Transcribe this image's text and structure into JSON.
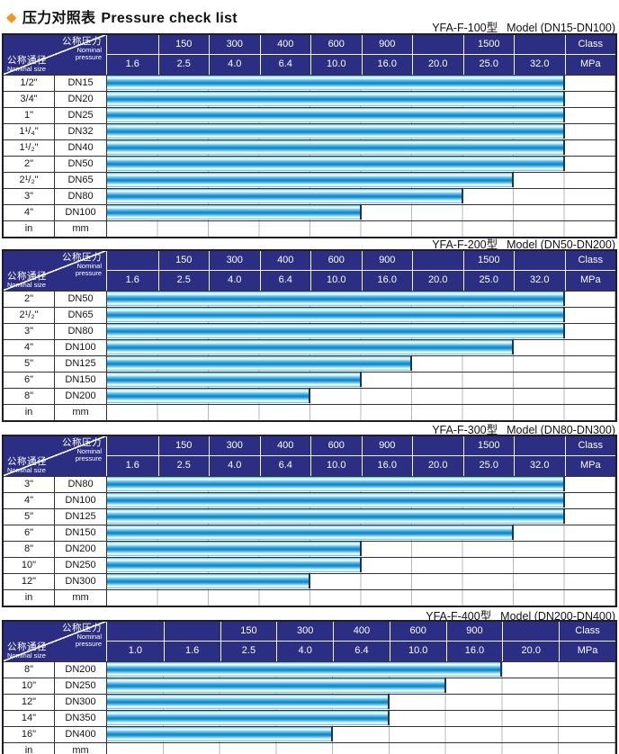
{
  "title": {
    "diamond": "◆",
    "zh": "压力对照表",
    "en": "Pressure check list"
  },
  "corner": {
    "pressure_zh": "公称压力",
    "pressure_en_line1": "Nominal",
    "pressure_en_line2": "pressure",
    "size_zh": "公称通径",
    "size_en": "Nominal size"
  },
  "colors": {
    "diamond_orange": "#f7941d",
    "header_navy": "#2b2e83",
    "header_divider_white": "#f4f4fb",
    "bar_deep_blue": "#0f86c4",
    "bar_mid_blue": "#49b1e3",
    "bar_highlight": "#ffffff",
    "grid_dark": "#323236",
    "grid_light": "#b7b7b7",
    "text_black": "#121212"
  },
  "tables": [
    {
      "model": "YFA-F-100型",
      "range": "Model (DN15-DN100)",
      "class_row": [
        "",
        "150",
        "300",
        "400",
        "600",
        "900",
        "",
        "1500",
        "",
        "Class"
      ],
      "mpa_row": [
        "1.6",
        "2.5",
        "4.0",
        "6.4",
        "10.0",
        "16.0",
        "20.0",
        "25.0",
        "32.0",
        "MPa"
      ],
      "rows": [
        {
          "inch": "1/2\"",
          "dn": "DN15",
          "bar_cols": 9,
          "max_mpa": "32.0"
        },
        {
          "inch": "3/4\"",
          "dn": "DN20",
          "bar_cols": 9,
          "max_mpa": "32.0"
        },
        {
          "inch": "1\"",
          "dn": "DN25",
          "bar_cols": 9,
          "max_mpa": "32.0"
        },
        {
          "inch": "1¹/₄\"",
          "dn": "DN32",
          "bar_cols": 9,
          "max_mpa": "32.0"
        },
        {
          "inch": "1¹/₂\"",
          "dn": "DN40",
          "bar_cols": 9,
          "max_mpa": "32.0"
        },
        {
          "inch": "2\"",
          "dn": "DN50",
          "bar_cols": 9,
          "max_mpa": "32.0"
        },
        {
          "inch": "2¹/₂\"",
          "dn": "DN65",
          "bar_cols": 8,
          "max_mpa": "25.0"
        },
        {
          "inch": "3\"",
          "dn": "DN80",
          "bar_cols": 7,
          "max_mpa": "20.0"
        },
        {
          "inch": "4\"",
          "dn": "DN100",
          "bar_cols": 5,
          "max_mpa": "10.0"
        }
      ],
      "footer": {
        "inch": "in",
        "dn": "mm"
      }
    },
    {
      "model": "YFA-F-200型",
      "range": "Model (DN50-DN200)",
      "class_row": [
        "",
        "150",
        "300",
        "400",
        "600",
        "900",
        "",
        "1500",
        "",
        "Class"
      ],
      "mpa_row": [
        "1.6",
        "2.5",
        "4.0",
        "6.4",
        "10.0",
        "16.0",
        "20.0",
        "25.0",
        "32.0",
        "MPa"
      ],
      "rows": [
        {
          "inch": "2\"",
          "dn": "DN50",
          "bar_cols": 9,
          "max_mpa": "32.0"
        },
        {
          "inch": "2¹/₂\"",
          "dn": "DN65",
          "bar_cols": 9,
          "max_mpa": "32.0"
        },
        {
          "inch": "3\"",
          "dn": "DN80",
          "bar_cols": 9,
          "max_mpa": "32.0"
        },
        {
          "inch": "4\"",
          "dn": "DN100",
          "bar_cols": 8,
          "max_mpa": "25.0"
        },
        {
          "inch": "5\"",
          "dn": "DN125",
          "bar_cols": 6,
          "max_mpa": "16.0"
        },
        {
          "inch": "6\"",
          "dn": "DN150",
          "bar_cols": 5,
          "max_mpa": "10.0"
        },
        {
          "inch": "8\"",
          "dn": "DN200",
          "bar_cols": 4,
          "max_mpa": "6.4"
        }
      ],
      "footer": {
        "inch": "in",
        "dn": "mm"
      }
    },
    {
      "model": "YFA-F-300型",
      "range": "Model (DN80-DN300)",
      "class_row": [
        "",
        "150",
        "300",
        "400",
        "600",
        "900",
        "",
        "1500",
        "",
        "Class"
      ],
      "mpa_row": [
        "1.6",
        "2.5",
        "4.0",
        "6.4",
        "10.0",
        "16.0",
        "20.0",
        "25.0",
        "32.0",
        "MPa"
      ],
      "rows": [
        {
          "inch": "3\"",
          "dn": "DN80",
          "bar_cols": 9,
          "max_mpa": "32.0"
        },
        {
          "inch": "4\"",
          "dn": "DN100",
          "bar_cols": 9,
          "max_mpa": "32.0"
        },
        {
          "inch": "5\"",
          "dn": "DN125",
          "bar_cols": 9,
          "max_mpa": "32.0"
        },
        {
          "inch": "6\"",
          "dn": "DN150",
          "bar_cols": 8,
          "max_mpa": "25.0"
        },
        {
          "inch": "8\"",
          "dn": "DN200",
          "bar_cols": 5,
          "max_mpa": "10.0"
        },
        {
          "inch": "10\"",
          "dn": "DN250",
          "bar_cols": 5,
          "max_mpa": "10.0"
        },
        {
          "inch": "12\"",
          "dn": "DN300",
          "bar_cols": 4,
          "max_mpa": "6.4"
        }
      ],
      "footer": {
        "inch": "in",
        "dn": "mm"
      }
    },
    {
      "model": "YFA-F-400型",
      "range": "Model (DN200-DN400)",
      "class_row": [
        "",
        "",
        "150",
        "300",
        "400",
        "600",
        "900",
        "",
        "Class"
      ],
      "mpa_row": [
        "1.0",
        "1.6",
        "2.5",
        "4.0",
        "6.4",
        "10.0",
        "16.0",
        "20.0",
        "MPa"
      ],
      "rows": [
        {
          "inch": "8\"",
          "dn": "DN200",
          "bar_cols": 7,
          "max_mpa": "16.0"
        },
        {
          "inch": "10\"",
          "dn": "DN250",
          "bar_cols": 6,
          "max_mpa": "10.0"
        },
        {
          "inch": "12\"",
          "dn": "DN300",
          "bar_cols": 5,
          "max_mpa": "6.4"
        },
        {
          "inch": "14\"",
          "dn": "DN350",
          "bar_cols": 5,
          "max_mpa": "6.4"
        },
        {
          "inch": "16\"",
          "dn": "DN400",
          "bar_cols": 4,
          "max_mpa": "4.0"
        }
      ],
      "footer": {
        "inch": "in",
        "dn": "mm"
      }
    }
  ]
}
